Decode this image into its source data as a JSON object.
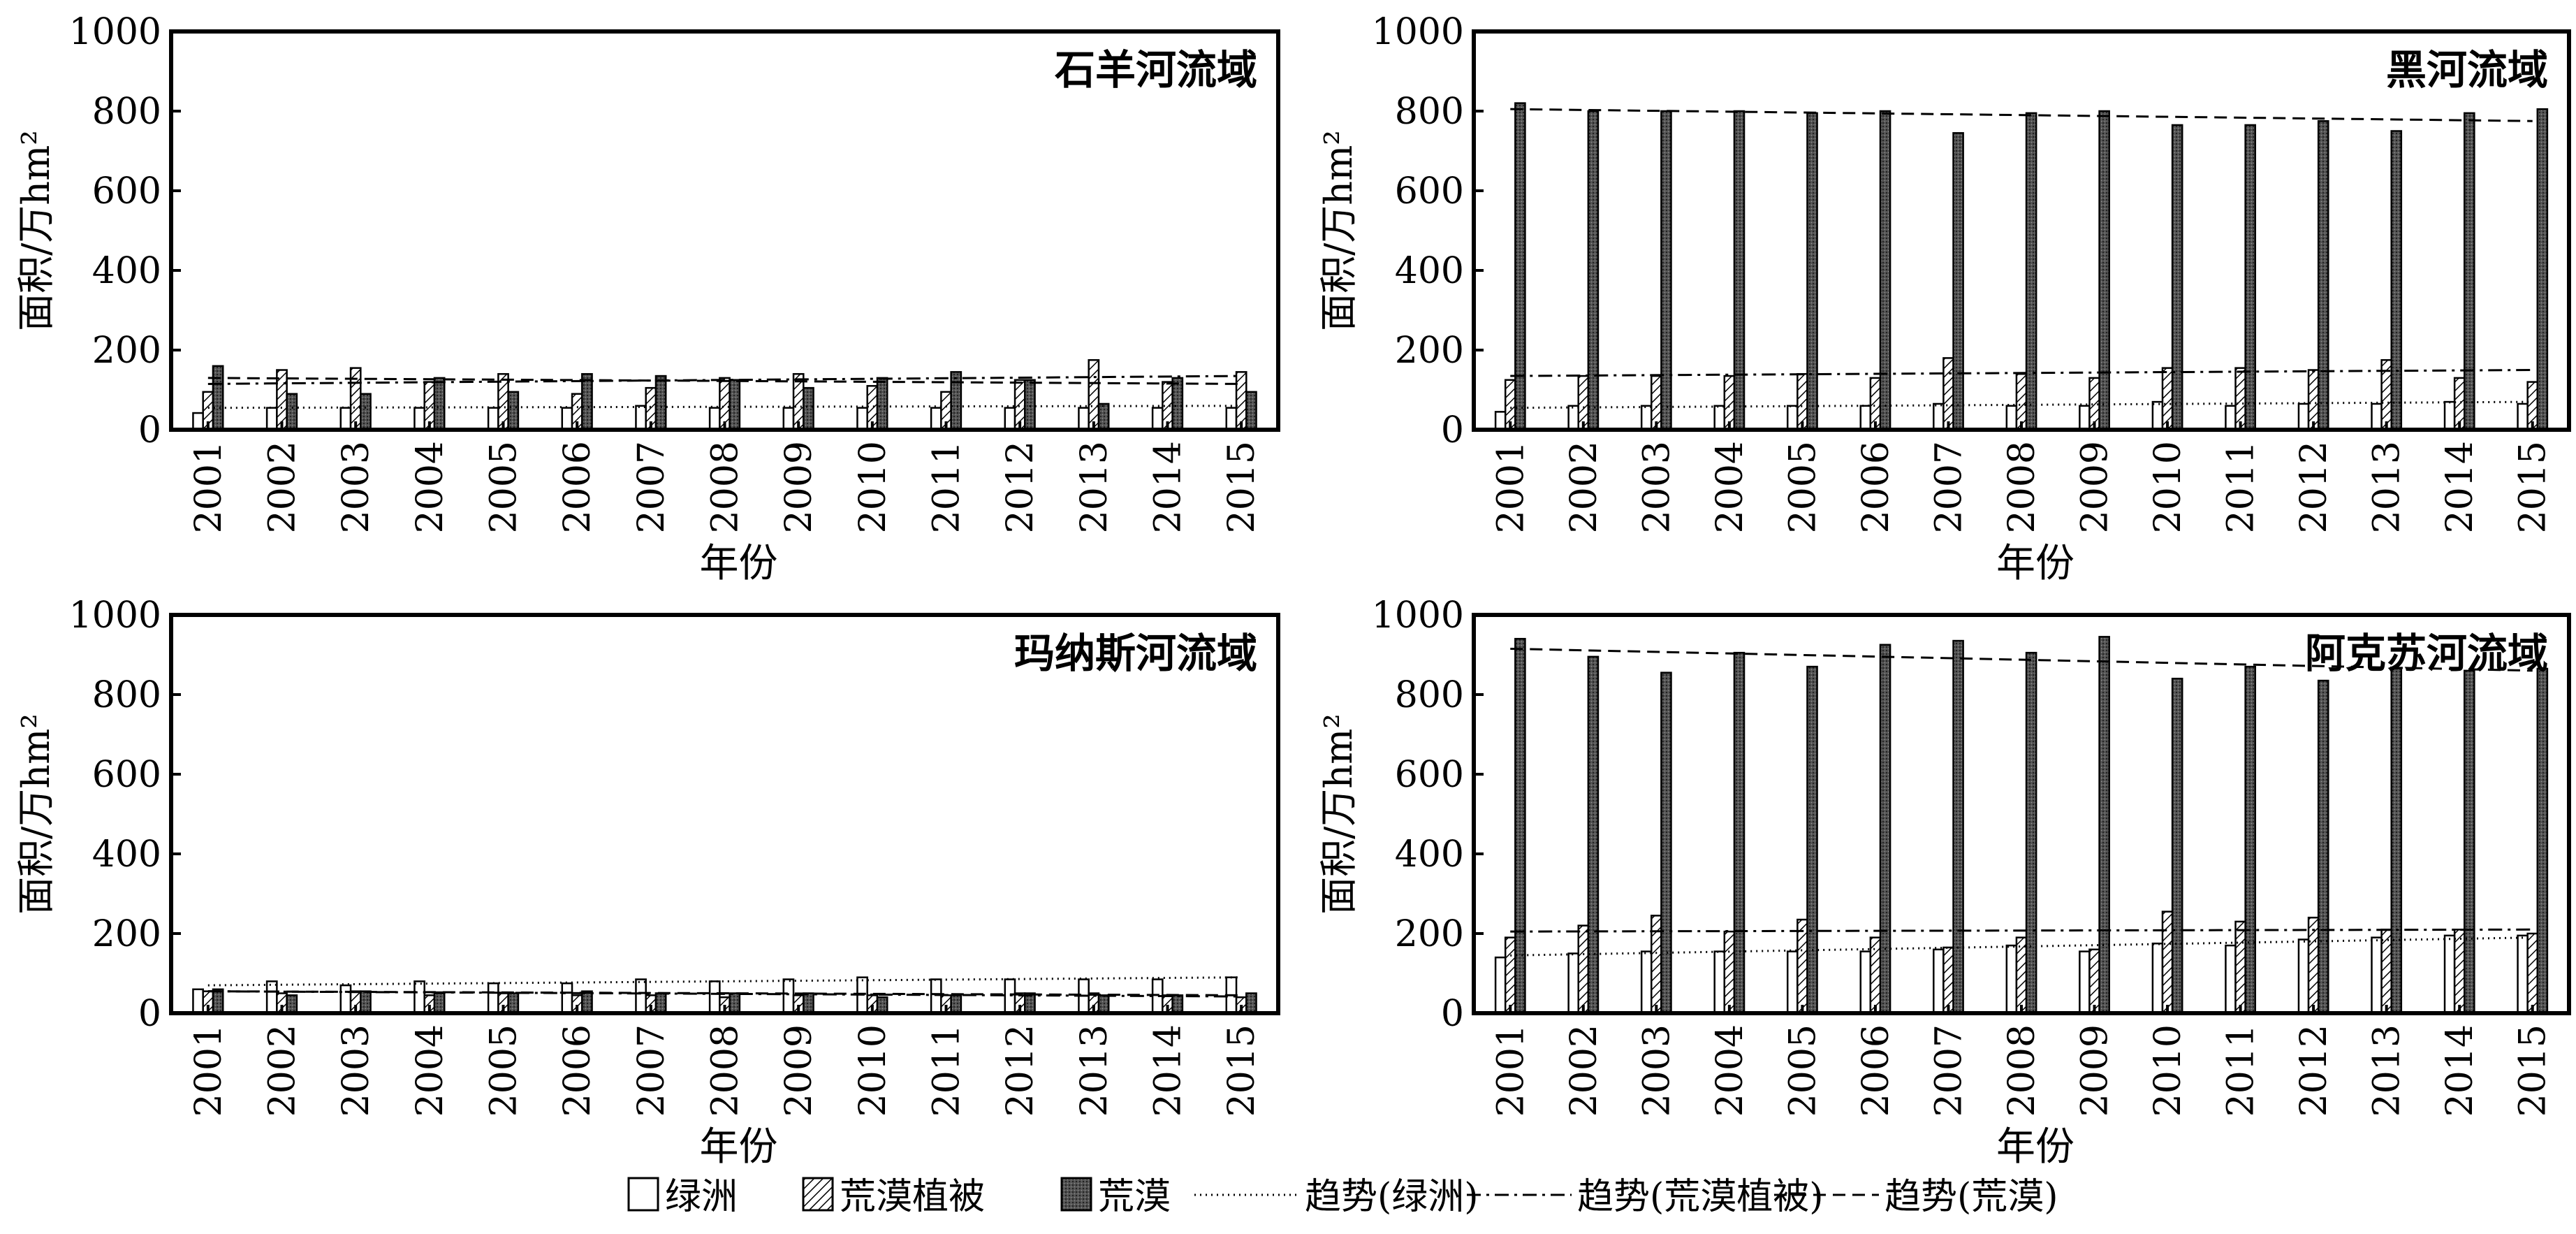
{
  "xlabel": "年份",
  "ylabel": "面积/万hm²",
  "legend": [
    {
      "key": "oasis",
      "label": "绿洲",
      "kind": "bar",
      "fill": "#ffffff"
    },
    {
      "key": "veg",
      "label": "荒漠植被",
      "kind": "bar",
      "fill": "hatch"
    },
    {
      "key": "desert",
      "label": "荒漠",
      "kind": "bar",
      "fill": "dark"
    },
    {
      "key": "t_oasis",
      "label": "趋势(绿洲)",
      "kind": "line",
      "dash": "2,6"
    },
    {
      "key": "t_veg",
      "label": "趋势(荒漠植被)",
      "kind": "line",
      "dash": "20,8,4,8"
    },
    {
      "key": "t_desert",
      "label": "趋势(荒漠)",
      "kind": "line",
      "dash": "18,10"
    }
  ],
  "colors": {
    "bar_stroke": "#000000",
    "dark_fill": "#555555",
    "background": "#ffffff"
  },
  "chart_data": [
    {
      "type": "bar",
      "title": "石羊河流域",
      "categories": [
        "2001",
        "2002",
        "2003",
        "2004",
        "2005",
        "2006",
        "2007",
        "2008",
        "2009",
        "2010",
        "2011",
        "2012",
        "2013",
        "2014",
        "2015"
      ],
      "ylim": [
        0,
        1000
      ],
      "yticks": [
        0,
        200,
        400,
        600,
        800,
        1000
      ],
      "series": [
        {
          "name": "绿洲",
          "values": [
            42,
            55,
            55,
            55,
            55,
            55,
            60,
            55,
            55,
            55,
            55,
            55,
            55,
            55,
            55
          ]
        },
        {
          "name": "荒漠植被",
          "values": [
            95,
            150,
            155,
            120,
            140,
            90,
            105,
            130,
            140,
            110,
            95,
            125,
            175,
            120,
            145
          ]
        },
        {
          "name": "荒漠",
          "values": [
            160,
            90,
            90,
            130,
            95,
            140,
            135,
            125,
            105,
            130,
            145,
            125,
            65,
            130,
            95
          ]
        }
      ],
      "trends": [
        {
          "name": "趋势(绿洲)",
          "values": [
            55,
            60
          ]
        },
        {
          "name": "趋势(荒漠植被)",
          "values": [
            115,
            135
          ]
        },
        {
          "name": "趋势(荒漠)",
          "values": [
            130,
            115
          ]
        }
      ]
    },
    {
      "type": "bar",
      "title": "黑河流域",
      "categories": [
        "2001",
        "2002",
        "2003",
        "2004",
        "2005",
        "2006",
        "2007",
        "2008",
        "2009",
        "2010",
        "2011",
        "2012",
        "2013",
        "2014",
        "2015"
      ],
      "ylim": [
        0,
        1000
      ],
      "yticks": [
        0,
        200,
        400,
        600,
        800,
        1000
      ],
      "series": [
        {
          "name": "绿洲",
          "values": [
            45,
            60,
            60,
            60,
            60,
            60,
            65,
            60,
            60,
            70,
            60,
            65,
            65,
            70,
            65
          ]
        },
        {
          "name": "荒漠植被",
          "values": [
            125,
            135,
            135,
            135,
            140,
            130,
            180,
            140,
            130,
            155,
            155,
            150,
            175,
            130,
            120
          ]
        },
        {
          "name": "荒漠",
          "values": [
            820,
            800,
            800,
            800,
            795,
            800,
            745,
            795,
            800,
            765,
            765,
            775,
            750,
            795,
            805
          ]
        }
      ],
      "trends": [
        {
          "name": "趋势(绿洲)",
          "values": [
            55,
            70
          ]
        },
        {
          "name": "趋势(荒漠植被)",
          "values": [
            135,
            150
          ]
        },
        {
          "name": "趋势(荒漠)",
          "values": [
            805,
            775
          ]
        }
      ]
    },
    {
      "type": "bar",
      "title": "玛纳斯河流域",
      "categories": [
        "2001",
        "2002",
        "2003",
        "2004",
        "2005",
        "2006",
        "2007",
        "2008",
        "2009",
        "2010",
        "2011",
        "2012",
        "2013",
        "2014",
        "2015"
      ],
      "ylim": [
        0,
        1000
      ],
      "yticks": [
        0,
        200,
        400,
        600,
        800,
        1000
      ],
      "series": [
        {
          "name": "绿洲",
          "values": [
            60,
            80,
            70,
            80,
            75,
            75,
            85,
            80,
            85,
            90,
            85,
            85,
            85,
            85,
            90
          ]
        },
        {
          "name": "荒漠植被",
          "values": [
            55,
            50,
            55,
            45,
            50,
            45,
            45,
            40,
            45,
            45,
            45,
            50,
            50,
            45,
            40
          ]
        },
        {
          "name": "荒漠",
          "values": [
            60,
            45,
            55,
            50,
            50,
            55,
            50,
            50,
            50,
            40,
            45,
            50,
            45,
            45,
            50
          ]
        }
      ],
      "trends": [
        {
          "name": "趋势(绿洲)",
          "values": [
            70,
            90
          ]
        },
        {
          "name": "趋势(荒漠植被)",
          "values": [
            55,
            42
          ]
        },
        {
          "name": "趋势(荒漠)",
          "values": [
            55,
            45
          ]
        }
      ]
    },
    {
      "type": "bar",
      "title": "阿克苏河流域",
      "categories": [
        "2001",
        "2002",
        "2003",
        "2004",
        "2005",
        "2006",
        "2007",
        "2008",
        "2009",
        "2010",
        "2011",
        "2012",
        "2013",
        "2014",
        "2015"
      ],
      "ylim": [
        0,
        1000
      ],
      "yticks": [
        0,
        200,
        400,
        600,
        800,
        1000
      ],
      "series": [
        {
          "name": "绿洲",
          "values": [
            140,
            150,
            155,
            155,
            155,
            155,
            160,
            170,
            155,
            175,
            170,
            185,
            190,
            195,
            195
          ]
        },
        {
          "name": "荒漠植被",
          "values": [
            190,
            220,
            245,
            205,
            235,
            190,
            165,
            190,
            160,
            255,
            230,
            240,
            210,
            210,
            200
          ]
        },
        {
          "name": "荒漠",
          "values": [
            940,
            895,
            855,
            905,
            870,
            925,
            935,
            905,
            945,
            840,
            870,
            835,
            865,
            860,
            865
          ]
        }
      ],
      "trends": [
        {
          "name": "趋势(绿洲)",
          "values": [
            145,
            190
          ]
        },
        {
          "name": "趋势(荒漠植被)",
          "values": [
            205,
            210
          ]
        },
        {
          "name": "趋势(荒漠)",
          "values": [
            915,
            860
          ]
        }
      ]
    }
  ]
}
